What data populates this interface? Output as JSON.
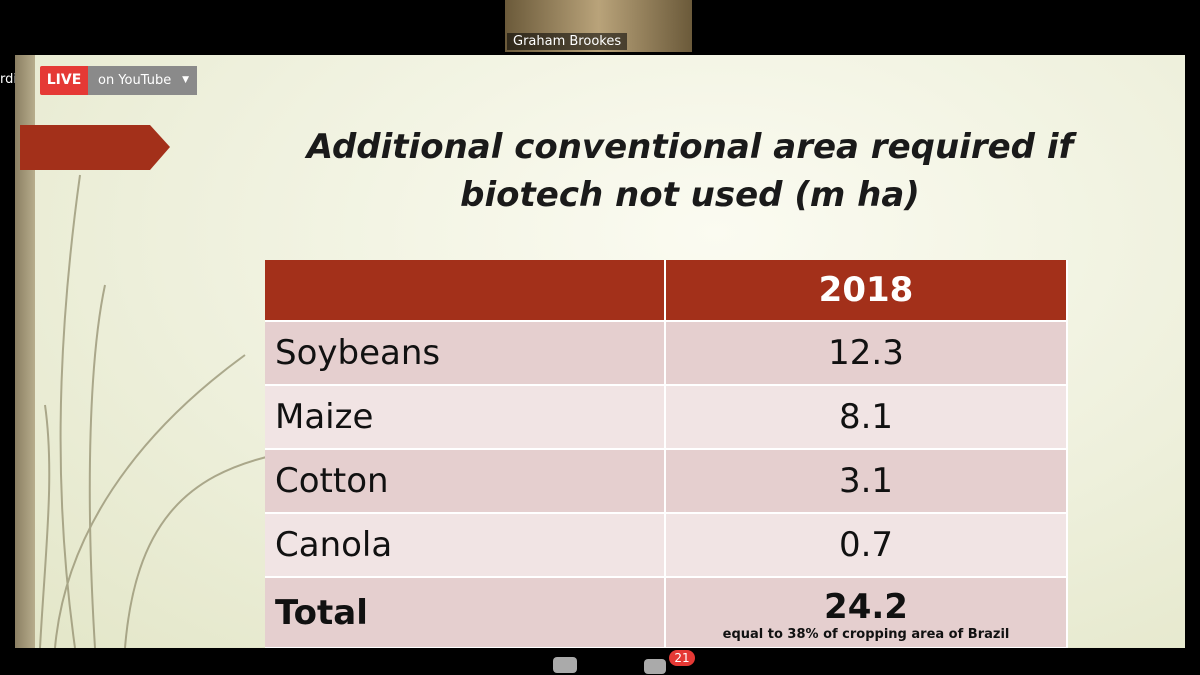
{
  "participant": {
    "name": "Graham Brookes"
  },
  "toolbar": {
    "recording": "rding",
    "live": "LIVE",
    "stream": "on YouTube"
  },
  "slide": {
    "title": "Additional conventional area required if biotech not used (m ha)",
    "table": {
      "header": [
        "",
        "2018"
      ],
      "rows": [
        [
          "Soybeans",
          "12.3"
        ],
        [
          "Maize",
          "8.1"
        ],
        [
          "Cotton",
          "3.1"
        ],
        [
          "Canola",
          "0.7"
        ],
        [
          "Total",
          "24.2"
        ]
      ],
      "note": "equal to 38% of cropping area of Brazil"
    }
  },
  "footer": {
    "chat_badge": "21"
  }
}
